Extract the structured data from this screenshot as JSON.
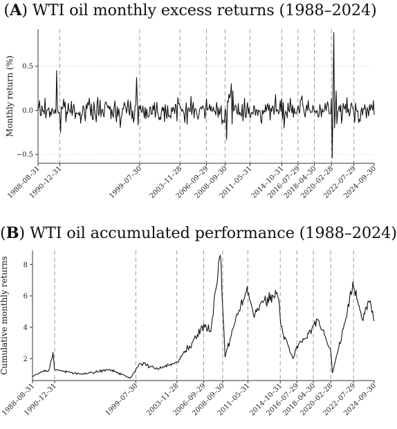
{
  "panel_a": {
    "letter": "A",
    "title_text": "WTI oil monthly excess returns (1988–2024)",
    "ylabel": "Monthly return (%)"
  },
  "panel_b": {
    "letter": "B",
    "title_text": "WTI oil accumulated performance (1988–2024)",
    "ylabel": "Cumulative monthly returns"
  },
  "colors": {
    "line": "#111111",
    "vline": "#9a9a9a",
    "grid": "#d8d8d8",
    "axis": "#333333"
  },
  "chart_data": [
    {
      "type": "line",
      "title": "(A) WTI oil monthly excess returns (1988–2024)",
      "ylabel": "Monthly return (%)",
      "xlim": [
        "1988-08-31",
        "2024-09-30"
      ],
      "ylim": [
        -0.6,
        0.92
      ],
      "yticks": [
        -0.5,
        0.0,
        0.5
      ],
      "ytick_labels": [
        "−0.5",
        "0.0",
        "0.5"
      ],
      "grid": "horizontal dotted",
      "x_ticks": [
        "1988–08–31",
        "1990–12–31",
        "1999–07–30",
        "2003–11–28",
        "2006–09–29",
        "2008–09–30",
        "2011–05–31",
        "2014–10–31",
        "2016–07–29",
        "2018–04–30",
        "2020–02–28",
        "2022–07–29",
        "2024–09–30"
      ],
      "vertical_lines": [
        "1990-12-31",
        "1999-07-30",
        "2003-11-28",
        "2006-09-29",
        "2008-09-30",
        "2011-05-31",
        "2014-10-31",
        "2016-07-29",
        "2018-04-30",
        "2020-02-28",
        "2022-07-29"
      ],
      "key_points": [
        {
          "x": "1988-08-31",
          "y": 0.0
        },
        {
          "x": "1990-08-31",
          "y": 0.45
        },
        {
          "x": "1991-01-31",
          "y": -0.25
        },
        {
          "x": "1999-03-31",
          "y": 0.37
        },
        {
          "x": "2008-11-28",
          "y": -0.33
        },
        {
          "x": "2009-05-29",
          "y": 0.3
        },
        {
          "x": "2015-01-30",
          "y": -0.2
        },
        {
          "x": "2020-03-31",
          "y": -0.54
        },
        {
          "x": "2020-05-29",
          "y": 0.88
        },
        {
          "x": "2024-09-30",
          "y": -0.05
        }
      ]
    },
    {
      "type": "line",
      "title": "(B) WTI oil accumulated performance (1988–2024)",
      "ylabel": "Cumulative monthly returns",
      "xlim": [
        "1988-08-31",
        "2024-09-30"
      ],
      "ylim": [
        0.6,
        8.9
      ],
      "yticks": [
        2,
        4,
        6,
        8
      ],
      "ytick_labels": [
        "2",
        "4",
        "6",
        "8"
      ],
      "grid": "none",
      "x_ticks": [
        "1988–08–31",
        "1990–12–31",
        "1999–07–30",
        "2003–11–28",
        "2006–09–29",
        "2008–09–30",
        "2011–05–31",
        "2014–10–31",
        "2016–07–29",
        "2018–04–30",
        "2020–02–28",
        "2022–07–29",
        "2024–09–30"
      ],
      "vertical_lines": [
        "1990-12-31",
        "1999-07-30",
        "2003-11-28",
        "2006-09-29",
        "2008-09-30",
        "2011-05-31",
        "2014-10-31",
        "2016-07-29",
        "2018-04-30",
        "2020-02-28",
        "2022-07-29"
      ],
      "series": [
        {
          "x": [
            "1988-08-31",
            "1989-06-30",
            "1990-05-31",
            "1990-10-31",
            "1990-12-31",
            "1991-06-28",
            "1993-12-31",
            "1996-10-31",
            "1998-12-31",
            "1999-12-31",
            "2001-12-31",
            "2003-11-28",
            "2005-06-30",
            "2006-09-29",
            "2007-06-29",
            "2008-06-30",
            "2008-12-31",
            "2009-12-31",
            "2011-04-29",
            "2011-12-30",
            "2013-06-28",
            "2014-06-30",
            "2015-01-30",
            "2016-02-29",
            "2016-07-29",
            "2017-06-30",
            "2018-09-28",
            "2019-06-28",
            "2020-02-28",
            "2020-04-30",
            "2021-06-30",
            "2022-06-30",
            "2023-06-30",
            "2024-03-29",
            "2024-09-30"
          ],
          "y": [
            0.85,
            1.1,
            1.3,
            2.4,
            1.3,
            1.25,
            1.0,
            1.3,
            0.75,
            1.7,
            1.35,
            1.75,
            3.0,
            4.2,
            3.7,
            8.6,
            2.1,
            4.2,
            6.6,
            4.8,
            5.9,
            6.2,
            3.7,
            2.0,
            2.8,
            3.3,
            4.5,
            3.5,
            2.5,
            1.1,
            3.9,
            6.9,
            4.5,
            5.6,
            4.4
          ]
        }
      ]
    }
  ]
}
